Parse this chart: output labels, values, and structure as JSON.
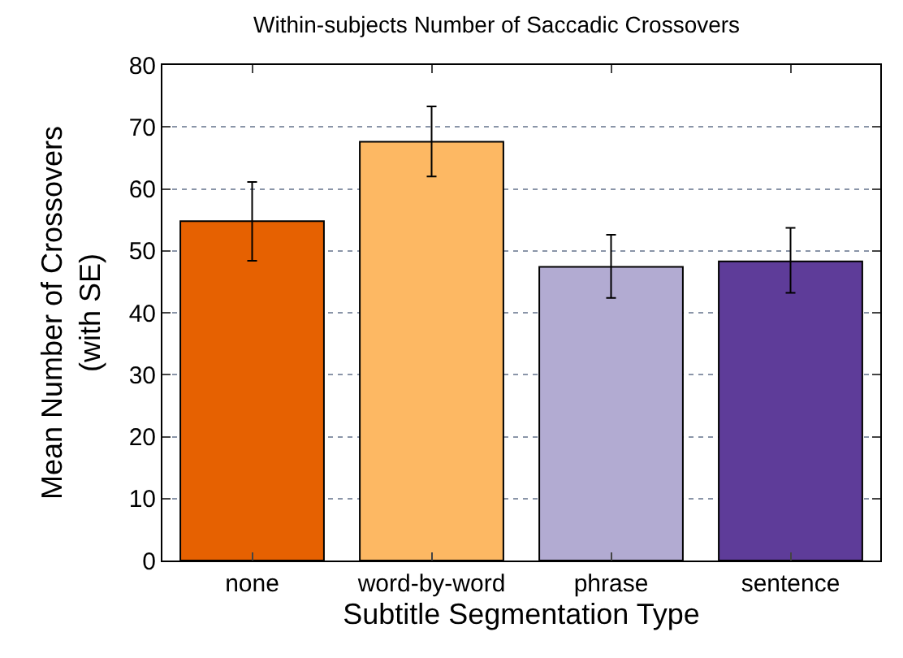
{
  "chart_data": {
    "type": "bar",
    "title": "Within-subjects Number of Saccadic Crossovers",
    "xlabel": "Subtitle Segmentation Type",
    "ylabel": "Mean Number of Crossovers\n(with SE)",
    "categories": [
      "none",
      "word-by-word",
      "phrase",
      "sentence"
    ],
    "values": [
      54.8,
      67.6,
      47.4,
      48.3
    ],
    "colors": [
      "#e66101",
      "#fdb863",
      "#b2abd2",
      "#5e3c99"
    ],
    "errors": [
      [
        48.4,
        61.1
      ],
      [
        62.0,
        73.3
      ],
      [
        42.4,
        52.6
      ],
      [
        43.2,
        53.7
      ]
    ],
    "ylim": [
      0,
      80
    ],
    "yticks": [
      0,
      10,
      20,
      30,
      40,
      50,
      60,
      70,
      80
    ],
    "grid": "y"
  }
}
